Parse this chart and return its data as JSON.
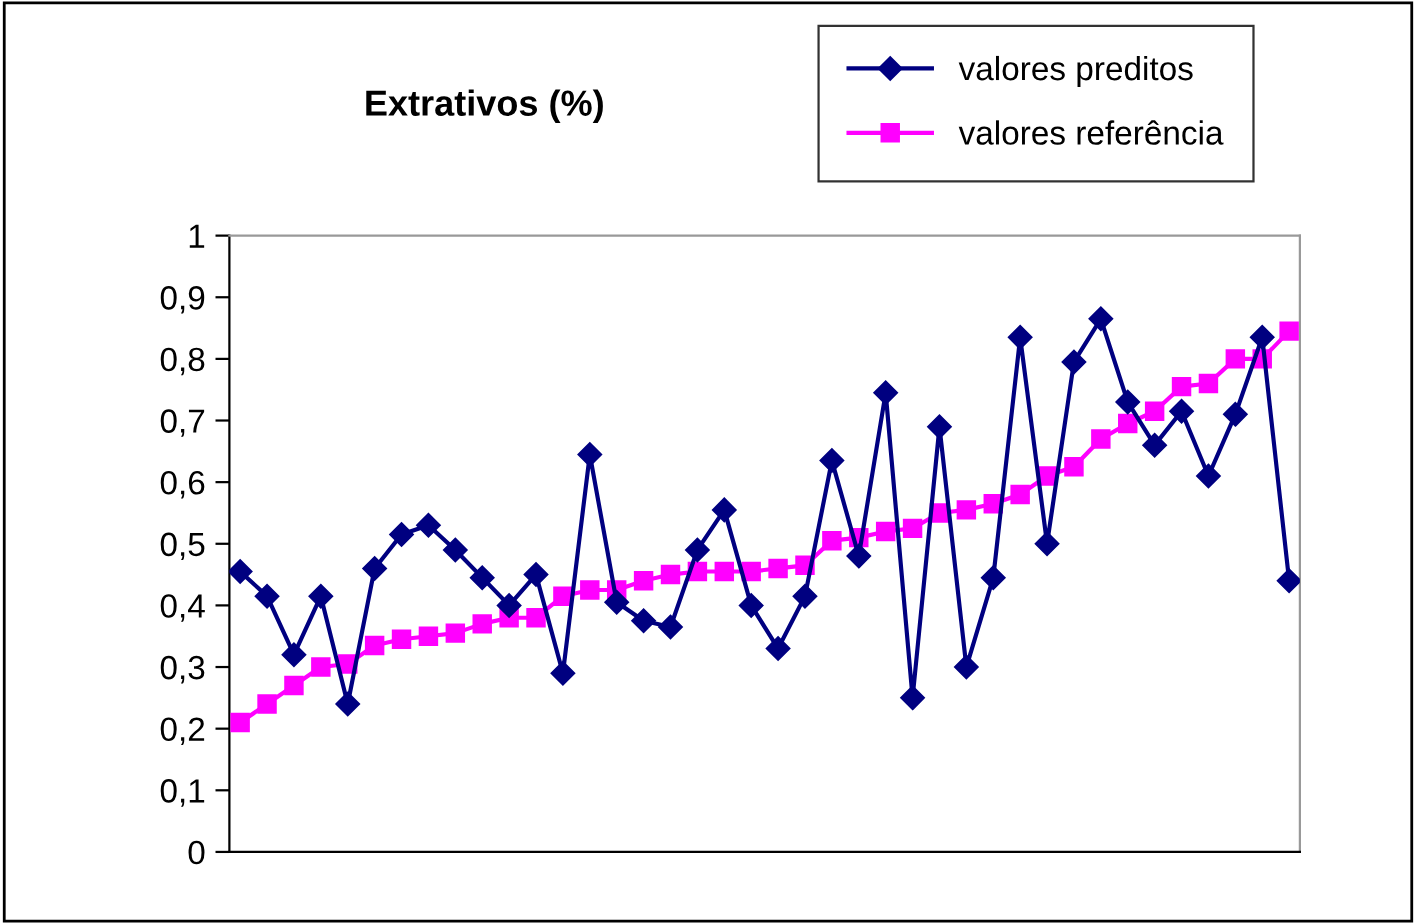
{
  "chart_data": {
    "type": "line",
    "title": "Extrativos (%)",
    "categories": [
      null,
      null,
      null,
      null,
      null,
      null,
      null,
      null,
      null,
      null,
      null,
      null,
      null,
      null,
      null,
      null,
      null,
      null,
      null,
      null,
      null,
      null,
      null,
      null,
      null,
      null,
      null,
      null,
      null,
      null,
      null,
      null,
      null,
      null,
      null,
      null,
      null,
      null,
      null,
      null
    ],
    "series": [
      {
        "name": "valores preditos",
        "color": "#000080",
        "marker": "diamond",
        "values": [
          0.455,
          0.415,
          0.32,
          0.415,
          0.24,
          0.46,
          0.515,
          0.53,
          0.49,
          0.445,
          0.4,
          0.45,
          0.29,
          0.645,
          0.405,
          0.375,
          0.365,
          0.49,
          0.555,
          0.4,
          0.33,
          0.415,
          0.635,
          0.48,
          0.745,
          0.25,
          0.69,
          0.3,
          0.445,
          0.835,
          0.5,
          0.795,
          0.865,
          0.73,
          0.66,
          0.715,
          0.61,
          0.71,
          0.835,
          0.44
        ]
      },
      {
        "name": "valores referência",
        "color": "#ff00ff",
        "marker": "square",
        "values": [
          0.21,
          0.24,
          0.27,
          0.3,
          0.305,
          0.335,
          0.345,
          0.35,
          0.355,
          0.37,
          0.38,
          0.38,
          0.415,
          0.425,
          0.425,
          0.44,
          0.45,
          0.455,
          0.455,
          0.455,
          0.46,
          0.465,
          0.505,
          0.51,
          0.52,
          0.525,
          0.55,
          0.555,
          0.565,
          0.58,
          0.61,
          0.625,
          0.67,
          0.695,
          0.715,
          0.755,
          0.76,
          0.8,
          0.8,
          0.845
        ]
      }
    ],
    "ylim": [
      0,
      1
    ],
    "yticks": [
      0,
      {
        "value": 0.1,
        "label": "0,1"
      },
      {
        "value": 0.2,
        "label": "0,2"
      },
      {
        "value": 0.3,
        "label": "0,3"
      },
      {
        "value": 0.4,
        "label": "0,4"
      },
      {
        "value": 0.5,
        "label": "0,5"
      },
      {
        "value": 0.6,
        "label": "0,6"
      },
      {
        "value": 0.7,
        "label": "0,7"
      },
      {
        "value": 0.8,
        "label": "0,8"
      },
      {
        "value": 0.9,
        "label": "0,9"
      },
      1
    ],
    "grid": false,
    "legend": "top right",
    "line_style": "solid"
  }
}
